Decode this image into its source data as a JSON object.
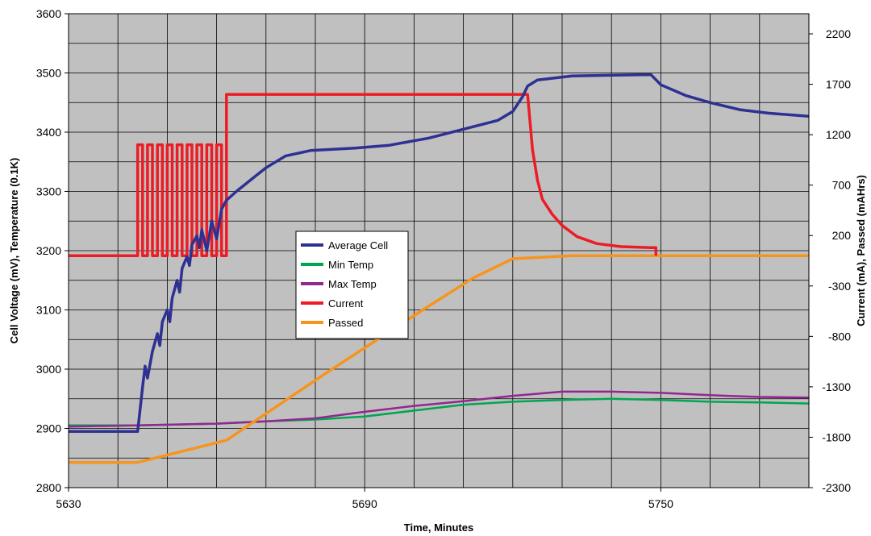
{
  "chart_data": {
    "type": "line",
    "xlabel": "Time, Minutes",
    "ylabel_left": "Cell Voltage (mV), Temperature (0.1K)",
    "ylabel_right": "Current (mA), Passed (mAHrs)",
    "xlim": [
      5630,
      5780
    ],
    "ylim_left": [
      2800,
      3600
    ],
    "ylim_right": [
      -2300,
      2400
    ],
    "x_ticks": [
      5630,
      5690,
      5750
    ],
    "left_ticks": [
      2800,
      2900,
      3000,
      3100,
      3200,
      3300,
      3400,
      3500,
      3600
    ],
    "right_ticks": [
      -2300,
      -1800,
      -1300,
      -800,
      -300,
      200,
      700,
      1200,
      1700,
      2200
    ],
    "grid": true,
    "background_color": "#c0c0c0",
    "legend_position": "center",
    "series": [
      {
        "name": "Average Cell",
        "axis": "left",
        "color": "#2e3192",
        "points": [
          [
            5630,
            2895
          ],
          [
            5644,
            2895
          ],
          [
            5645,
            2970
          ],
          [
            5645.5,
            3005
          ],
          [
            5646,
            2985
          ],
          [
            5647,
            3030
          ],
          [
            5648,
            3060
          ],
          [
            5648.5,
            3040
          ],
          [
            5649,
            3080
          ],
          [
            5650,
            3100
          ],
          [
            5650.5,
            3080
          ],
          [
            5651,
            3120
          ],
          [
            5652,
            3150
          ],
          [
            5652.5,
            3130
          ],
          [
            5653,
            3170
          ],
          [
            5654,
            3190
          ],
          [
            5654.5,
            3175
          ],
          [
            5655,
            3210
          ],
          [
            5656,
            3225
          ],
          [
            5656.5,
            3205
          ],
          [
            5657,
            3235
          ],
          [
            5658,
            3200
          ],
          [
            5659,
            3250
          ],
          [
            5660,
            3220
          ],
          [
            5661,
            3270
          ],
          [
            5662,
            3285
          ],
          [
            5664,
            3300
          ],
          [
            5667,
            3320
          ],
          [
            5670,
            3340
          ],
          [
            5674,
            3360
          ],
          [
            5679,
            3369
          ],
          [
            5688,
            3373
          ],
          [
            5695,
            3378
          ],
          [
            5703,
            3390
          ],
          [
            5710,
            3405
          ],
          [
            5717,
            3420
          ],
          [
            5720,
            3435
          ],
          [
            5722,
            3460
          ],
          [
            5723,
            3478
          ],
          [
            5725,
            3488
          ],
          [
            5732,
            3495
          ],
          [
            5746,
            3497
          ],
          [
            5748,
            3497
          ],
          [
            5750,
            3480
          ],
          [
            5755,
            3462
          ],
          [
            5760,
            3450
          ],
          [
            5766,
            3438
          ],
          [
            5772,
            3432
          ],
          [
            5780,
            3427
          ]
        ]
      },
      {
        "name": "Min Temp",
        "axis": "left",
        "color": "#00a651",
        "points": [
          [
            5630,
            2905
          ],
          [
            5644,
            2905
          ],
          [
            5660,
            2908
          ],
          [
            5670,
            2912
          ],
          [
            5680,
            2915
          ],
          [
            5690,
            2920
          ],
          [
            5700,
            2930
          ],
          [
            5710,
            2940
          ],
          [
            5720,
            2945
          ],
          [
            5730,
            2948
          ],
          [
            5740,
            2950
          ],
          [
            5750,
            2948
          ],
          [
            5760,
            2945
          ],
          [
            5770,
            2944
          ],
          [
            5780,
            2942
          ]
        ]
      },
      {
        "name": "Max Temp",
        "axis": "left",
        "color": "#92278f",
        "points": [
          [
            5630,
            2903
          ],
          [
            5644,
            2905
          ],
          [
            5660,
            2908
          ],
          [
            5670,
            2912
          ],
          [
            5680,
            2917
          ],
          [
            5690,
            2928
          ],
          [
            5700,
            2938
          ],
          [
            5710,
            2946
          ],
          [
            5720,
            2955
          ],
          [
            5730,
            2962
          ],
          [
            5740,
            2962
          ],
          [
            5750,
            2960
          ],
          [
            5760,
            2956
          ],
          [
            5770,
            2953
          ],
          [
            5780,
            2952
          ]
        ]
      },
      {
        "name": "Current",
        "axis": "right",
        "color": "#ed1c24",
        "points": [
          [
            5630,
            0
          ],
          [
            5644,
            0
          ],
          [
            5644,
            1100
          ],
          [
            5645,
            1100
          ],
          [
            5645,
            0
          ],
          [
            5646,
            0
          ],
          [
            5646,
            1100
          ],
          [
            5647,
            1100
          ],
          [
            5647,
            0
          ],
          [
            5648,
            0
          ],
          [
            5648,
            1100
          ],
          [
            5649,
            1100
          ],
          [
            5649,
            0
          ],
          [
            5650,
            0
          ],
          [
            5650,
            1100
          ],
          [
            5651,
            1100
          ],
          [
            5651,
            0
          ],
          [
            5652,
            0
          ],
          [
            5652,
            1100
          ],
          [
            5653,
            1100
          ],
          [
            5653,
            0
          ],
          [
            5654,
            0
          ],
          [
            5654,
            1100
          ],
          [
            5655,
            1100
          ],
          [
            5655,
            0
          ],
          [
            5656,
            0
          ],
          [
            5656,
            1100
          ],
          [
            5657,
            1100
          ],
          [
            5657,
            0
          ],
          [
            5658,
            0
          ],
          [
            5658,
            1100
          ],
          [
            5659,
            1100
          ],
          [
            5659,
            0
          ],
          [
            5660,
            0
          ],
          [
            5660,
            1100
          ],
          [
            5661,
            1100
          ],
          [
            5661,
            0
          ],
          [
            5662,
            0
          ],
          [
            5662,
            1600
          ],
          [
            5723,
            1600
          ],
          [
            5724,
            1050
          ],
          [
            5725,
            750
          ],
          [
            5726,
            560
          ],
          [
            5728,
            410
          ],
          [
            5730,
            300
          ],
          [
            5733,
            190
          ],
          [
            5737,
            120
          ],
          [
            5742,
            90
          ],
          [
            5748,
            80
          ],
          [
            5749,
            80
          ],
          [
            5749,
            0
          ]
        ]
      },
      {
        "name": "Passed",
        "axis": "right",
        "color": "#f7941d",
        "points": [
          [
            5630,
            -2050
          ],
          [
            5644,
            -2050
          ],
          [
            5662,
            -1830
          ],
          [
            5672,
            -1500
          ],
          [
            5682,
            -1170
          ],
          [
            5692,
            -850
          ],
          [
            5702,
            -530
          ],
          [
            5712,
            -220
          ],
          [
            5720,
            -30
          ],
          [
            5726,
            -15
          ],
          [
            5732,
            0
          ],
          [
            5750,
            0
          ],
          [
            5780,
            0
          ]
        ]
      }
    ]
  }
}
